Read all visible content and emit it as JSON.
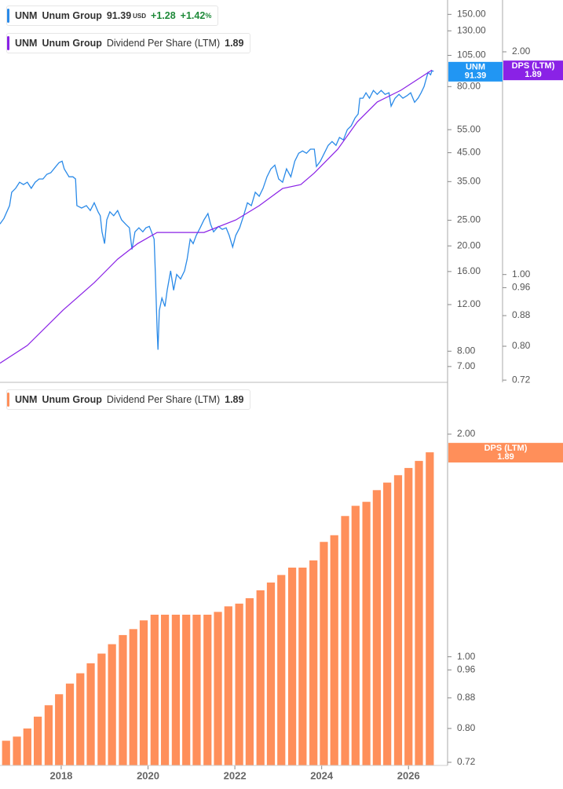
{
  "chart_data": [
    {
      "type": "line",
      "symbol": "UNM",
      "company": "Unum Group",
      "currency": "USD",
      "change": {
        "value": 1.28,
        "label": "+1.28"
      },
      "change_percent": {
        "value": 1.42,
        "label": "+1.42"
      },
      "percent_sign": "%",
      "tag_label": "DPS (LTM)",
      "log_scale": true,
      "xlim": [
        2016.59,
        2026.9
      ],
      "ylim": [
        6.1,
        170
      ],
      "yticks": [
        {
          "value": 150,
          "label": "150.00"
        },
        {
          "value": 130,
          "label": "130.00"
        },
        {
          "value": 105,
          "label": "105.00"
        },
        {
          "value": 80,
          "label": "80.00"
        },
        {
          "value": 55,
          "label": "55.00"
        },
        {
          "value": 45,
          "label": "45.00"
        },
        {
          "value": 35,
          "label": "35.00"
        },
        {
          "value": 25,
          "label": "25.00"
        },
        {
          "value": 20,
          "label": "20.00"
        },
        {
          "value": 16,
          "label": "16.00"
        },
        {
          "value": 12,
          "label": "12.00"
        },
        {
          "value": 8,
          "label": "8.00"
        },
        {
          "value": 7,
          "label": "7.00"
        }
      ],
      "y2lim": [
        0.715,
        2.35
      ],
      "y2ticks": [
        {
          "value": 2,
          "label": "2.00"
        },
        {
          "value": 1,
          "label": "1.00"
        },
        0.96,
        0.88,
        {
          "value": 0.8,
          "label": "0.80"
        },
        0.72
      ],
      "series": [
        {
          "name": "Unum Group",
          "color": "#2a8ae8",
          "x": [
            2016.59,
            2016.68,
            2016.81,
            2016.86,
            2016.95,
            2017.04,
            2017.13,
            2017.22,
            2017.31,
            2017.4,
            2017.49,
            2017.58,
            2017.67,
            2017.76,
            2017.86,
            2017.95,
            2018.02,
            2018.07,
            2018.18,
            2018.27,
            2018.33,
            2018.36,
            2018.47,
            2018.58,
            2018.67,
            2018.76,
            2018.85,
            2018.9,
            2018.94,
            2019.0,
            2019.05,
            2019.12,
            2019.21,
            2019.3,
            2019.39,
            2019.48,
            2019.57,
            2019.63,
            2019.7,
            2019.79,
            2019.88,
            2019.95,
            2020.03,
            2020.08,
            2020.14,
            2020.17,
            2020.21,
            2020.23,
            2020.26,
            2020.32,
            2020.39,
            2020.44,
            2020.52,
            2020.59,
            2020.66,
            2020.75,
            2020.84,
            2020.9,
            2020.97,
            2021.04,
            2021.11,
            2021.2,
            2021.29,
            2021.38,
            2021.44,
            2021.51,
            2021.62,
            2021.71,
            2021.8,
            2021.87,
            2021.95,
            2022.02,
            2022.11,
            2022.2,
            2022.29,
            2022.38,
            2022.47,
            2022.56,
            2022.65,
            2022.74,
            2022.83,
            2022.92,
            2023.01,
            2023.1,
            2023.19,
            2023.29,
            2023.38,
            2023.47,
            2023.56,
            2023.65,
            2023.74,
            2023.83,
            2023.88,
            2023.97,
            2024.06,
            2024.15,
            2024.24,
            2024.33,
            2024.41,
            2024.5,
            2024.59,
            2024.68,
            2024.77,
            2024.84,
            2024.88,
            2024.95,
            2025.02,
            2025.1,
            2025.19,
            2025.28,
            2025.37,
            2025.46,
            2025.55,
            2025.6,
            2025.69,
            2025.78,
            2025.87,
            2025.96,
            2026.05,
            2026.14,
            2026.22,
            2026.29,
            2026.36,
            2026.45,
            2026.51,
            2026.54,
            2026.58
          ],
          "values": [
            24.2,
            25.4,
            28.4,
            31.9,
            33.0,
            34.8,
            34.1,
            34.8,
            33.0,
            34.8,
            35.8,
            35.8,
            37.3,
            37.8,
            39.6,
            41.3,
            41.8,
            39.1,
            36.5,
            36.5,
            35.8,
            28.4,
            27.8,
            28.4,
            27.2,
            29.1,
            26.9,
            26.0,
            22.6,
            20.4,
            25.1,
            26.9,
            26.0,
            27.2,
            25.1,
            24.2,
            23.4,
            19.4,
            22.6,
            23.4,
            22.6,
            23.4,
            23.7,
            22.6,
            21.2,
            15.6,
            9.6,
            8.1,
            11.4,
            12.7,
            11.8,
            13.6,
            16.1,
            13.6,
            15.6,
            15.0,
            16.1,
            17.8,
            21.2,
            20.4,
            21.9,
            23.4,
            25.1,
            26.5,
            24.2,
            22.6,
            23.7,
            23.1,
            23.4,
            21.9,
            19.8,
            21.9,
            23.4,
            26.0,
            29.1,
            28.4,
            31.9,
            30.8,
            33.0,
            36.5,
            39.1,
            40.4,
            35.8,
            34.8,
            39.1,
            36.5,
            41.8,
            44.8,
            45.7,
            44.8,
            46.4,
            46.4,
            39.9,
            41.8,
            44.8,
            48.0,
            49.6,
            48.0,
            51.4,
            50.3,
            55.0,
            56.9,
            60.9,
            63.0,
            72.3,
            72.3,
            75.8,
            72.3,
            77.4,
            74.8,
            77.4,
            74.8,
            75.8,
            67.5,
            72.3,
            74.8,
            72.3,
            73.8,
            75.8,
            69.8,
            72.3,
            75.8,
            80.1,
            90.5,
            88.7,
            91.8,
            91.39
          ]
        },
        {
          "name": "Dividend Per Share (LTM)",
          "color": "#8a22e6",
          "axis": "y2",
          "x": [
            2016.59,
            2017.22,
            2018.04,
            2018.76,
            2019.3,
            2019.76,
            2020.21,
            2021.29,
            2022.02,
            2022.56,
            2023.1,
            2023.52,
            2023.83,
            2024.37,
            2024.82,
            2025.28,
            2025.82,
            2026.54
          ],
          "values": [
            0.759,
            0.802,
            0.895,
            0.975,
            1.049,
            1.101,
            1.14,
            1.14,
            1.185,
            1.239,
            1.307,
            1.323,
            1.372,
            1.477,
            1.608,
            1.711,
            1.774,
            1.89
          ]
        }
      ]
    },
    {
      "type": "bar",
      "symbol": "UNM",
      "company": "Unum Group",
      "tag_label": "DPS (LTM)",
      "log_scale": true,
      "xlim": [
        2016.59,
        2026.9
      ],
      "xticks": [
        2018,
        2020,
        2022,
        2024,
        2026
      ],
      "ylim": [
        0.713,
        2.35
      ],
      "yticks": [
        {
          "value": 2,
          "label": "2.00"
        },
        {
          "value": 1,
          "label": "1.00"
        },
        0.96,
        0.88,
        {
          "value": 0.8,
          "label": "0.80"
        },
        0.72
      ],
      "series": [
        {
          "name": "Dividend Per Share (LTM)",
          "color": "#ff8f5a",
          "x": [
            2016.73,
            2016.98,
            2017.22,
            2017.46,
            2017.71,
            2017.95,
            2018.2,
            2018.44,
            2018.68,
            2018.93,
            2019.17,
            2019.42,
            2019.66,
            2019.9,
            2020.15,
            2020.39,
            2020.64,
            2020.88,
            2021.12,
            2021.37,
            2021.61,
            2021.85,
            2022.1,
            2022.34,
            2022.59,
            2022.83,
            2023.07,
            2023.32,
            2023.56,
            2023.81,
            2024.05,
            2024.29,
            2024.54,
            2024.78,
            2025.03,
            2025.27,
            2025.51,
            2025.76,
            2026.0,
            2026.24,
            2026.49
          ],
          "values": [
            0.77,
            0.78,
            0.8,
            0.83,
            0.86,
            0.89,
            0.92,
            0.95,
            0.98,
            1.01,
            1.04,
            1.07,
            1.09,
            1.12,
            1.14,
            1.14,
            1.14,
            1.14,
            1.14,
            1.14,
            1.15,
            1.17,
            1.18,
            1.2,
            1.23,
            1.26,
            1.29,
            1.32,
            1.32,
            1.35,
            1.43,
            1.46,
            1.55,
            1.6,
            1.62,
            1.68,
            1.72,
            1.76,
            1.8,
            1.84,
            1.89
          ]
        }
      ]
    }
  ]
}
